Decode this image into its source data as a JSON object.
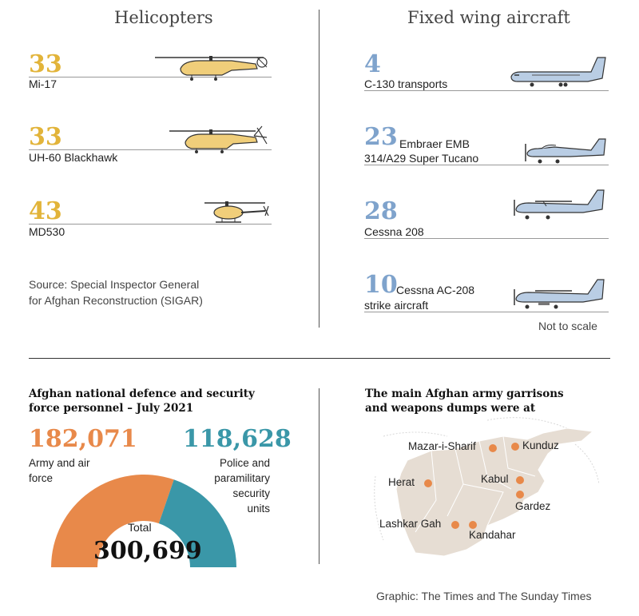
{
  "helicopters": {
    "title": "Helicopters",
    "items": [
      {
        "count": "33",
        "label": "Mi-17"
      },
      {
        "count": "33",
        "label": "UH-60 Blackhawk"
      },
      {
        "count": "43",
        "label": "MD530"
      }
    ],
    "source_line1": "Source: Special Inspector General",
    "source_line2": "for Afghan Reconstruction (SIGAR)"
  },
  "fixed_wing": {
    "title": "Fixed wing aircraft",
    "items": [
      {
        "count": "4",
        "label1": "",
        "label2": "C-130 transports"
      },
      {
        "count": "23",
        "label1": "Embraer EMB",
        "label2": "314/A29 Super Tucano"
      },
      {
        "count": "28",
        "label1": "",
        "label2": "Cessna 208"
      },
      {
        "count": "10",
        "label1": "Cessna AC-208",
        "label2": "strike aircraft"
      }
    ],
    "note": "Not to scale"
  },
  "personnel": {
    "title_line1": "Afghan national defence and security",
    "title_line2": "force personnel – July 2021",
    "army_value": "182,071",
    "army_label1": "Army and air",
    "army_label2": "force",
    "police_value": "118,628",
    "police_label1": "Police and",
    "police_label2": "paramilitary",
    "police_label3": "security",
    "police_label4": "units",
    "total_label": "Total",
    "total_value": "300,699"
  },
  "garrisons": {
    "title_line1": "The main Afghan army garrisons",
    "title_line2": "and weapons dumps were at",
    "cities": [
      "Mazar-i-Sharif",
      "Kunduz",
      "Herat",
      "Kabul",
      "Gardez",
      "Lashkar Gah",
      "Kandahar"
    ]
  },
  "credit": "Graphic: The Times and The Sunday Times",
  "colors": {
    "gold": "#e2b43a",
    "blue": "#7fa3cc",
    "orange": "#e8894a",
    "teal": "#3a97a8",
    "map": "#e6ddd3"
  },
  "chart_data": {
    "type": "pie",
    "categories": [
      "Army and air force",
      "Police and paramilitary security units"
    ],
    "values": [
      182071,
      118628
    ],
    "total": 300699,
    "title": "Afghan national defence and security force personnel – July 2021"
  }
}
